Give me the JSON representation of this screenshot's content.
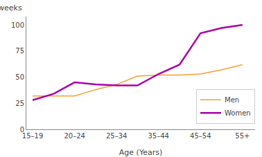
{
  "chart_data": {
    "type": "line",
    "xlabel": "Age (Years)",
    "ylabel": "weeks",
    "series": [
      {
        "name": "Men",
        "color": "#f5a030",
        "x": [
          0,
          1,
          1.5,
          2,
          2.5,
          3,
          3.5,
          4,
          4.5,
          5
        ],
        "values": [
          32,
          32,
          38,
          43,
          51,
          52,
          52,
          53,
          57,
          62
        ]
      },
      {
        "name": "Women",
        "color": "#aa00aa",
        "x": [
          0,
          0.5,
          1,
          1.5,
          2,
          2.5,
          3,
          3.5,
          4,
          4.5,
          5
        ],
        "values": [
          28,
          34,
          45,
          43,
          42,
          42,
          53,
          62,
          92,
          97,
          100
        ]
      }
    ],
    "xlim": [
      -0.15,
      5.3
    ],
    "xticks": [
      {
        "value": 0,
        "label": "15–19"
      },
      {
        "value": 1,
        "label": "20–24"
      },
      {
        "value": 2,
        "label": "25–34"
      },
      {
        "value": 3,
        "label": "35–44"
      },
      {
        "value": 4,
        "label": "45–54"
      },
      {
        "value": 5,
        "label": "55+"
      }
    ],
    "ylim": [
      0,
      108
    ],
    "yticks": [
      0,
      25,
      50,
      75,
      100
    ],
    "grid": false,
    "legend": "lower right"
  }
}
